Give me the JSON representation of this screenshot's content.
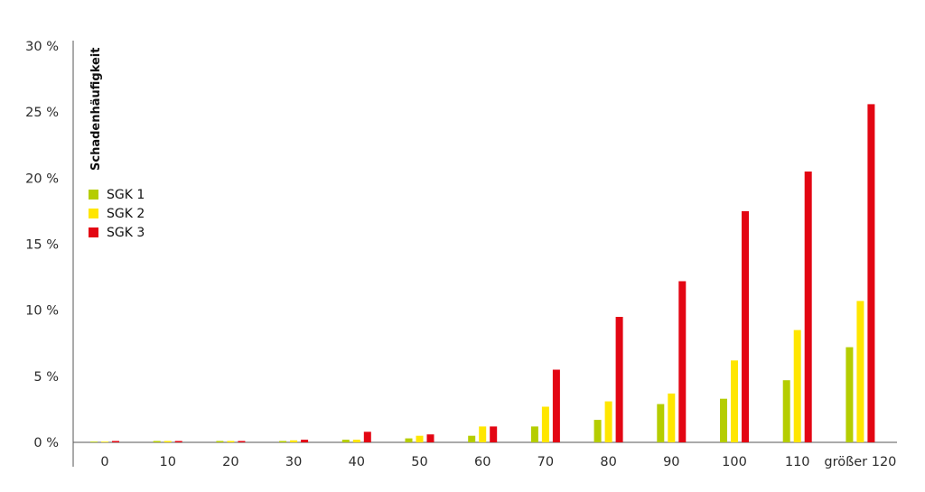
{
  "chart_data": {
    "type": "bar",
    "title": "",
    "xlabel": "",
    "ylabel": "Schadenhäufigkeit",
    "ylim": [
      0,
      30
    ],
    "y_ticks": [
      "0 %",
      "5 %",
      "10 %",
      "15 %",
      "20 %",
      "25 %",
      "30 %"
    ],
    "grid": false,
    "legend_position": "top-left",
    "categories": [
      "0",
      "10",
      "20",
      "30",
      "40",
      "50",
      "60",
      "70",
      "80",
      "90",
      "100",
      "110",
      "größer 120"
    ],
    "series": [
      {
        "name": "SGK 1",
        "color": "#b5cd00",
        "values": [
          0.0,
          0.1,
          0.1,
          0.1,
          0.2,
          0.3,
          0.5,
          1.2,
          1.7,
          2.9,
          3.3,
          4.7,
          7.2
        ]
      },
      {
        "name": "SGK 2",
        "color": "#ffe600",
        "values": [
          0.05,
          0.1,
          0.1,
          0.15,
          0.2,
          0.5,
          1.2,
          2.7,
          3.1,
          3.7,
          6.2,
          8.5,
          10.7
        ]
      },
      {
        "name": "SGK 3",
        "color": "#e30613",
        "values": [
          0.1,
          0.1,
          0.1,
          0.2,
          0.8,
          0.6,
          1.2,
          5.5,
          9.5,
          12.2,
          17.5,
          20.5,
          25.6
        ]
      }
    ]
  }
}
